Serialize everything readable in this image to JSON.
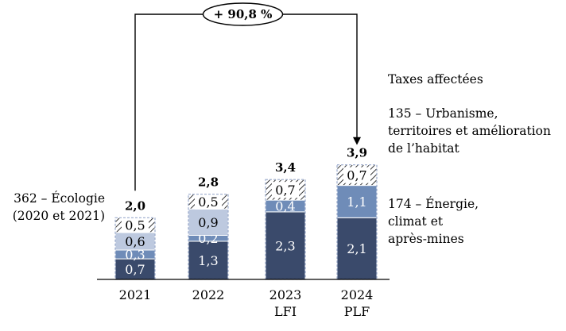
{
  "chart_data": {
    "type": "bar",
    "stacked": true,
    "categories": [
      "2021",
      "2022",
      "2023",
      "2024"
    ],
    "category_sublabels": [
      "",
      "",
      "LFI",
      "PLF"
    ],
    "series": [
      {
        "name": "174 – Énergie, climat et après-mines",
        "values": [
          0.7,
          1.3,
          2.3,
          2.1
        ],
        "color": "#3A4A6B",
        "label_color": "#ffffff"
      },
      {
        "name": "135 – Urbanisme, territoires et amélioration de l’habitat",
        "values": [
          0.3,
          0.2,
          0.4,
          1.1
        ],
        "color": "#6F8CB8",
        "label_color": "#ffffff"
      },
      {
        "name": "362 – Écologie (2020 et 2021)",
        "values": [
          0.6,
          0.9,
          null,
          null
        ],
        "color": "#BDC9DF",
        "label_color": "#000000"
      },
      {
        "name": "Taxes affectées",
        "values": [
          0.5,
          0.5,
          0.7,
          0.7
        ],
        "color": "#ffffff",
        "pattern": "hatched",
        "label_color": "#000000"
      }
    ],
    "value_labels": [
      [
        "0,7",
        "0,3",
        "0,6",
        "0,5"
      ],
      [
        "1,3",
        "0,2",
        "0,9",
        "0,5"
      ],
      [
        "2,3",
        "0,4",
        "",
        "0,7"
      ],
      [
        "2,1",
        "1,1",
        "",
        "0,7"
      ]
    ],
    "totals": [
      2.0,
      2.8,
      3.4,
      3.9
    ],
    "total_labels": [
      "2,0",
      "2,8",
      "3,4",
      "3,9"
    ],
    "growth_annotation": "+ 90,8 %",
    "side_labels": {
      "left": [
        "362 – Écologie",
        "(2020 et 2021)"
      ],
      "right_top": [
        "Taxes affectées"
      ],
      "right_middle": [
        "135 – Urbanisme,",
        "territoires et amélioration",
        "de l’habitat"
      ],
      "right_bottom": [
        "174 – Énergie,",
        "climat et",
        "après-mines"
      ]
    },
    "ylim": [
      0,
      4.0
    ],
    "grid": false,
    "legend": "none"
  }
}
